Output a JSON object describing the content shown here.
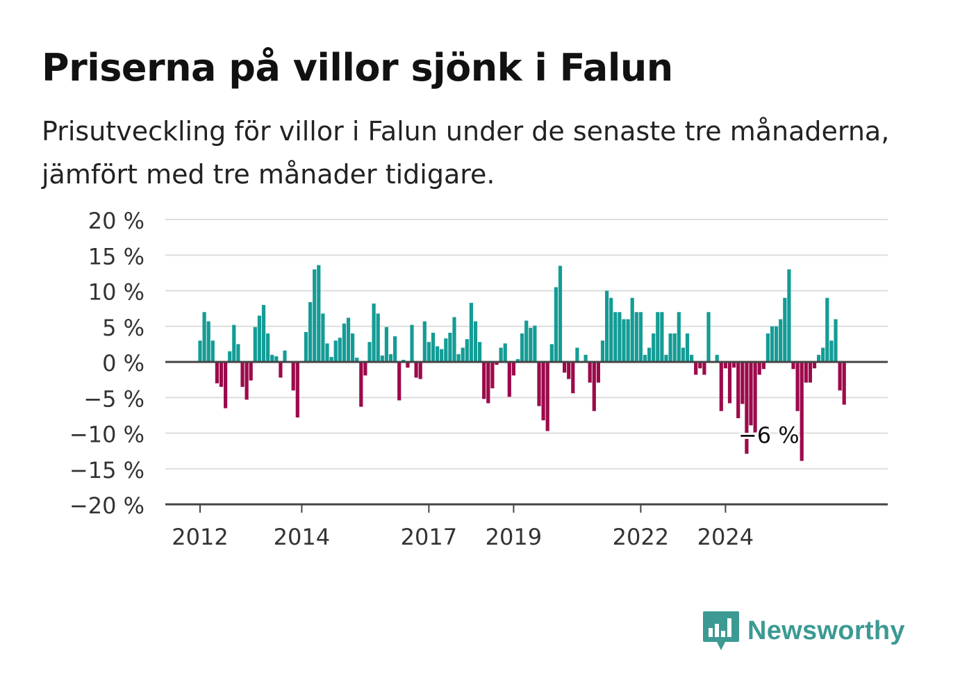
{
  "title": "Priserna på villor sjönk i Falun",
  "subtitle": "Prisutveckling för villor i Falun under de senaste tre månaderna, jämfört med tre månader tidigare.",
  "brand": {
    "name": "Newsworthy",
    "icon": "newsworthy-bar-chart-icon",
    "color": "#3c9a93"
  },
  "colors": {
    "positive": "#149c96",
    "negative": "#9c0a4b",
    "grid": "#dddddd",
    "axis": "#444444"
  },
  "chart_data": {
    "type": "bar",
    "ylim": [
      -20,
      20
    ],
    "yticks": [
      20,
      15,
      10,
      5,
      0,
      -5,
      -10,
      -15,
      -20
    ],
    "ytick_labels": [
      "20 %",
      "15 %",
      "10 %",
      "5 %",
      "0 %",
      "−5 %",
      "−10 %",
      "−15 %",
      "−20 %"
    ],
    "xtick_labels": [
      "2012",
      "2014",
      "2017",
      "2019",
      "2022",
      "2024"
    ],
    "xtick_month_index": [
      0,
      24,
      54,
      74,
      104,
      124
    ],
    "first_month": "2012-01",
    "grid": true,
    "annotation": {
      "text": "−6 %",
      "month_index": 128,
      "value": -6
    },
    "values": [
      3,
      7,
      5.7,
      3,
      -3,
      -3.5,
      -6.5,
      1.5,
      5.2,
      2.5,
      -3.5,
      -5.3,
      -2.6,
      4.9,
      6.5,
      8,
      4,
      1,
      0.8,
      -2.2,
      1.6,
      0,
      -4,
      -7.8,
      0,
      4.2,
      8.4,
      13,
      13.6,
      6.8,
      2.6,
      0.7,
      3,
      3.4,
      5.4,
      6.2,
      4,
      0.6,
      -6.3,
      -1.9,
      2.8,
      8.2,
      6.8,
      0.9,
      4.9,
      1.1,
      3.6,
      -5.4,
      0.3,
      -0.8,
      5.2,
      -2.2,
      -2.4,
      5.7,
      2.8,
      4.1,
      2.2,
      1.8,
      3.3,
      4.1,
      6.3,
      1.1,
      2,
      3.2,
      8.3,
      5.7,
      2.8,
      -5.2,
      -5.8,
      -3.7,
      -0.4,
      2,
      2.6,
      -4.9,
      -1.9,
      0.4,
      4,
      5.8,
      4.8,
      5.1,
      -6.2,
      -8.2,
      -9.7,
      2.5,
      10.5,
      13.5,
      -1.5,
      -2.4,
      -4.4,
      2,
      0,
      1,
      -2.9,
      -6.9,
      -2.9,
      3,
      10,
      9,
      7,
      7,
      6,
      6,
      9,
      7,
      7,
      1,
      2,
      4,
      7,
      7,
      1,
      4,
      4,
      7,
      2,
      4,
      1,
      -1.8,
      -0.9,
      -1.8,
      7,
      0,
      1,
      -6.9,
      -0.9,
      -5.8,
      -0.8,
      -7.9,
      -5.9,
      -12.9,
      -8.9,
      -9.9,
      -1.8,
      -1,
      4,
      5,
      5,
      6,
      9,
      13,
      -1,
      -6.9,
      -13.9,
      -2.9,
      -2.9,
      -0.9,
      1,
      2,
      9,
      3,
      6,
      -4,
      -6
    ]
  }
}
